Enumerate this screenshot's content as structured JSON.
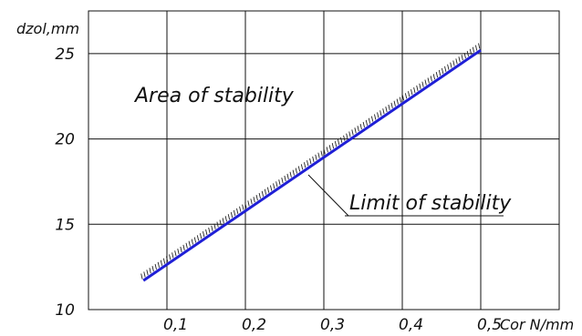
{
  "chart_data": {
    "type": "line",
    "xlabel": "Cor N/mm",
    "ylabel": "dzol,mm",
    "x_ticks": [
      "0,1",
      "0,2",
      "0,3",
      "0,4",
      "0,5"
    ],
    "y_ticks": [
      "10",
      "15",
      "20",
      "25"
    ],
    "xlim": [
      0.0,
      0.6
    ],
    "ylim": [
      10,
      27.5
    ],
    "grid": true,
    "series": [
      {
        "name": "Limit of stability",
        "color": "#1f1fd6",
        "x": [
          0.07,
          0.5
        ],
        "y": [
          11.7,
          25.2
        ]
      }
    ],
    "annotations": [
      {
        "text": "Area of stability"
      },
      {
        "text": "Limit of stability"
      }
    ]
  }
}
